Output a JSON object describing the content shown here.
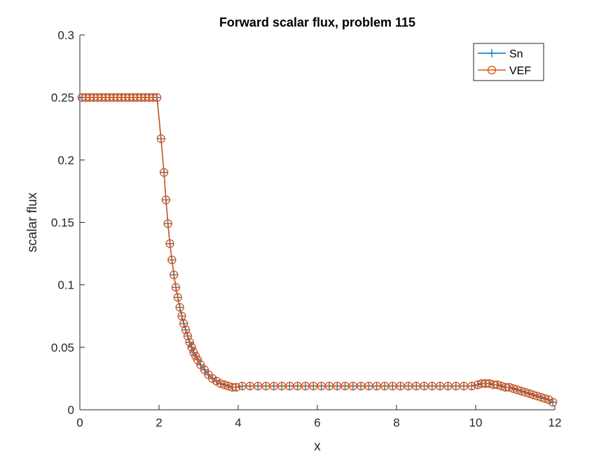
{
  "chart_data": {
    "type": "line",
    "title": "Forward scalar flux, problem 115",
    "xlabel": "x",
    "ylabel": "scalar flux",
    "xlim": [
      0,
      12
    ],
    "ylim": [
      0,
      0.3
    ],
    "xticks": [
      0,
      2,
      4,
      6,
      8,
      10,
      12
    ],
    "xtick_labels": [
      "0",
      "2",
      "4",
      "6",
      "8",
      "10",
      "12"
    ],
    "yticks": [
      0,
      0.05,
      0.1,
      0.15,
      0.2,
      0.25,
      0.3
    ],
    "ytick_labels": [
      "0",
      "0.05",
      "0.1",
      "0.15",
      "0.2",
      "0.25",
      "0.3"
    ],
    "grid": false,
    "legend_position": "top-right",
    "x": [
      0.05,
      0.15,
      0.25,
      0.35,
      0.45,
      0.55,
      0.65,
      0.75,
      0.85,
      0.95,
      1.05,
      1.15,
      1.25,
      1.35,
      1.45,
      1.55,
      1.65,
      1.75,
      1.85,
      1.95,
      2.05,
      2.125,
      2.175,
      2.225,
      2.275,
      2.325,
      2.375,
      2.425,
      2.475,
      2.525,
      2.575,
      2.625,
      2.675,
      2.725,
      2.775,
      2.825,
      2.875,
      2.925,
      2.975,
      3.05,
      3.15,
      3.25,
      3.35,
      3.45,
      3.55,
      3.65,
      3.75,
      3.85,
      3.95,
      4.1,
      4.3,
      4.5,
      4.7,
      4.9,
      5.1,
      5.3,
      5.5,
      5.7,
      5.9,
      6.1,
      6.3,
      6.5,
      6.7,
      6.9,
      7.1,
      7.3,
      7.5,
      7.7,
      7.9,
      8.1,
      8.3,
      8.5,
      8.7,
      8.9,
      9.1,
      9.3,
      9.5,
      9.7,
      9.9,
      10.05,
      10.15,
      10.25,
      10.35,
      10.45,
      10.55,
      10.65,
      10.75,
      10.85,
      10.95,
      11.05,
      11.15,
      11.25,
      11.35,
      11.45,
      11.55,
      11.65,
      11.75,
      11.85,
      11.95
    ],
    "series": [
      {
        "name": "Sn",
        "color": "#0072BD",
        "marker": "plus",
        "values": [
          0.25,
          0.25,
          0.25,
          0.25,
          0.25,
          0.25,
          0.25,
          0.25,
          0.25,
          0.25,
          0.25,
          0.25,
          0.25,
          0.25,
          0.25,
          0.25,
          0.25,
          0.25,
          0.25,
          0.25,
          0.217,
          0.19,
          0.168,
          0.149,
          0.133,
          0.12,
          0.108,
          0.098,
          0.09,
          0.082,
          0.075,
          0.069,
          0.064,
          0.059,
          0.054,
          0.05,
          0.046,
          0.043,
          0.04,
          0.036,
          0.032,
          0.028,
          0.025,
          0.023,
          0.021,
          0.02,
          0.019,
          0.018,
          0.018,
          0.019,
          0.019,
          0.019,
          0.019,
          0.019,
          0.019,
          0.019,
          0.019,
          0.019,
          0.019,
          0.019,
          0.019,
          0.019,
          0.019,
          0.019,
          0.019,
          0.019,
          0.019,
          0.019,
          0.019,
          0.019,
          0.019,
          0.019,
          0.019,
          0.019,
          0.019,
          0.019,
          0.019,
          0.019,
          0.019,
          0.02,
          0.021,
          0.021,
          0.021,
          0.02,
          0.02,
          0.019,
          0.018,
          0.018,
          0.017,
          0.016,
          0.015,
          0.014,
          0.013,
          0.012,
          0.011,
          0.01,
          0.009,
          0.008,
          0.006
        ]
      },
      {
        "name": "VEF",
        "color": "#D95319",
        "marker": "circle",
        "values": [
          0.25,
          0.25,
          0.25,
          0.25,
          0.25,
          0.25,
          0.25,
          0.25,
          0.25,
          0.25,
          0.25,
          0.25,
          0.25,
          0.25,
          0.25,
          0.25,
          0.25,
          0.25,
          0.25,
          0.25,
          0.217,
          0.19,
          0.168,
          0.149,
          0.133,
          0.12,
          0.108,
          0.098,
          0.09,
          0.082,
          0.075,
          0.069,
          0.064,
          0.059,
          0.054,
          0.05,
          0.046,
          0.043,
          0.04,
          0.036,
          0.032,
          0.028,
          0.025,
          0.023,
          0.021,
          0.02,
          0.019,
          0.018,
          0.018,
          0.019,
          0.019,
          0.019,
          0.019,
          0.019,
          0.019,
          0.019,
          0.019,
          0.019,
          0.019,
          0.019,
          0.019,
          0.019,
          0.019,
          0.019,
          0.019,
          0.019,
          0.019,
          0.019,
          0.019,
          0.019,
          0.019,
          0.019,
          0.019,
          0.019,
          0.019,
          0.019,
          0.019,
          0.019,
          0.019,
          0.02,
          0.021,
          0.021,
          0.021,
          0.02,
          0.02,
          0.019,
          0.018,
          0.018,
          0.017,
          0.016,
          0.015,
          0.014,
          0.013,
          0.012,
          0.011,
          0.01,
          0.009,
          0.008,
          0.006
        ]
      }
    ]
  }
}
